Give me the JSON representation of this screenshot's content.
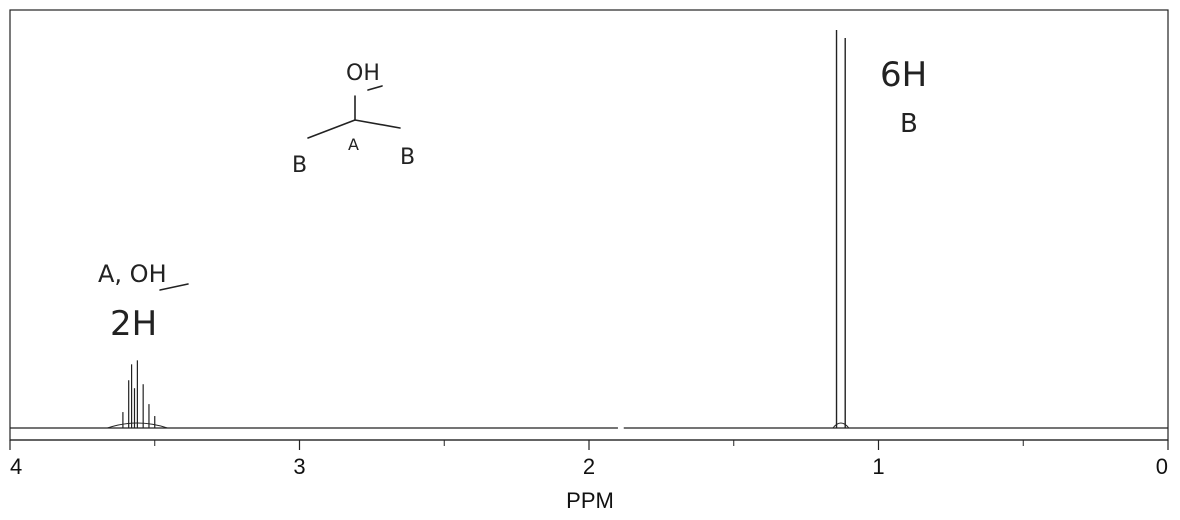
{
  "chart_data": {
    "type": "line",
    "xlabel": "PPM",
    "x_reversed": true,
    "xlim": [
      4,
      0
    ],
    "major_ticks": [
      "4",
      "3",
      "2",
      "1",
      "0"
    ],
    "minor_ticks": [
      3.5,
      2.5,
      1.5,
      0.5
    ],
    "grid": false,
    "peaks": [
      {
        "label": "A, OH",
        "integration": "2H",
        "multiplet_center": 3.56,
        "lines": [
          {
            "x": 3.61,
            "h": 0.04
          },
          {
            "x": 3.59,
            "h": 0.12
          },
          {
            "x": 3.58,
            "h": 0.16
          },
          {
            "x": 3.57,
            "h": 0.1
          },
          {
            "x": 3.56,
            "h": 0.17
          },
          {
            "x": 3.54,
            "h": 0.11
          },
          {
            "x": 3.52,
            "h": 0.06
          },
          {
            "x": 3.5,
            "h": 0.03
          }
        ]
      },
      {
        "label": "B",
        "integration": "6H",
        "multiplet_center": 1.13,
        "lines": [
          {
            "x": 1.145,
            "h": 1.0
          },
          {
            "x": 1.115,
            "h": 0.98
          }
        ]
      }
    ],
    "baseline_gap": [
      1.9,
      1.88
    ]
  },
  "annotations": {
    "structure": {
      "oh": "OH",
      "carbon_a": "A",
      "methyl_left": "B",
      "methyl_right": "B"
    },
    "peak_a": {
      "line1": "A, OH",
      "line2": "2H"
    },
    "peak_b": {
      "line1": "6H",
      "line2": "B"
    }
  }
}
